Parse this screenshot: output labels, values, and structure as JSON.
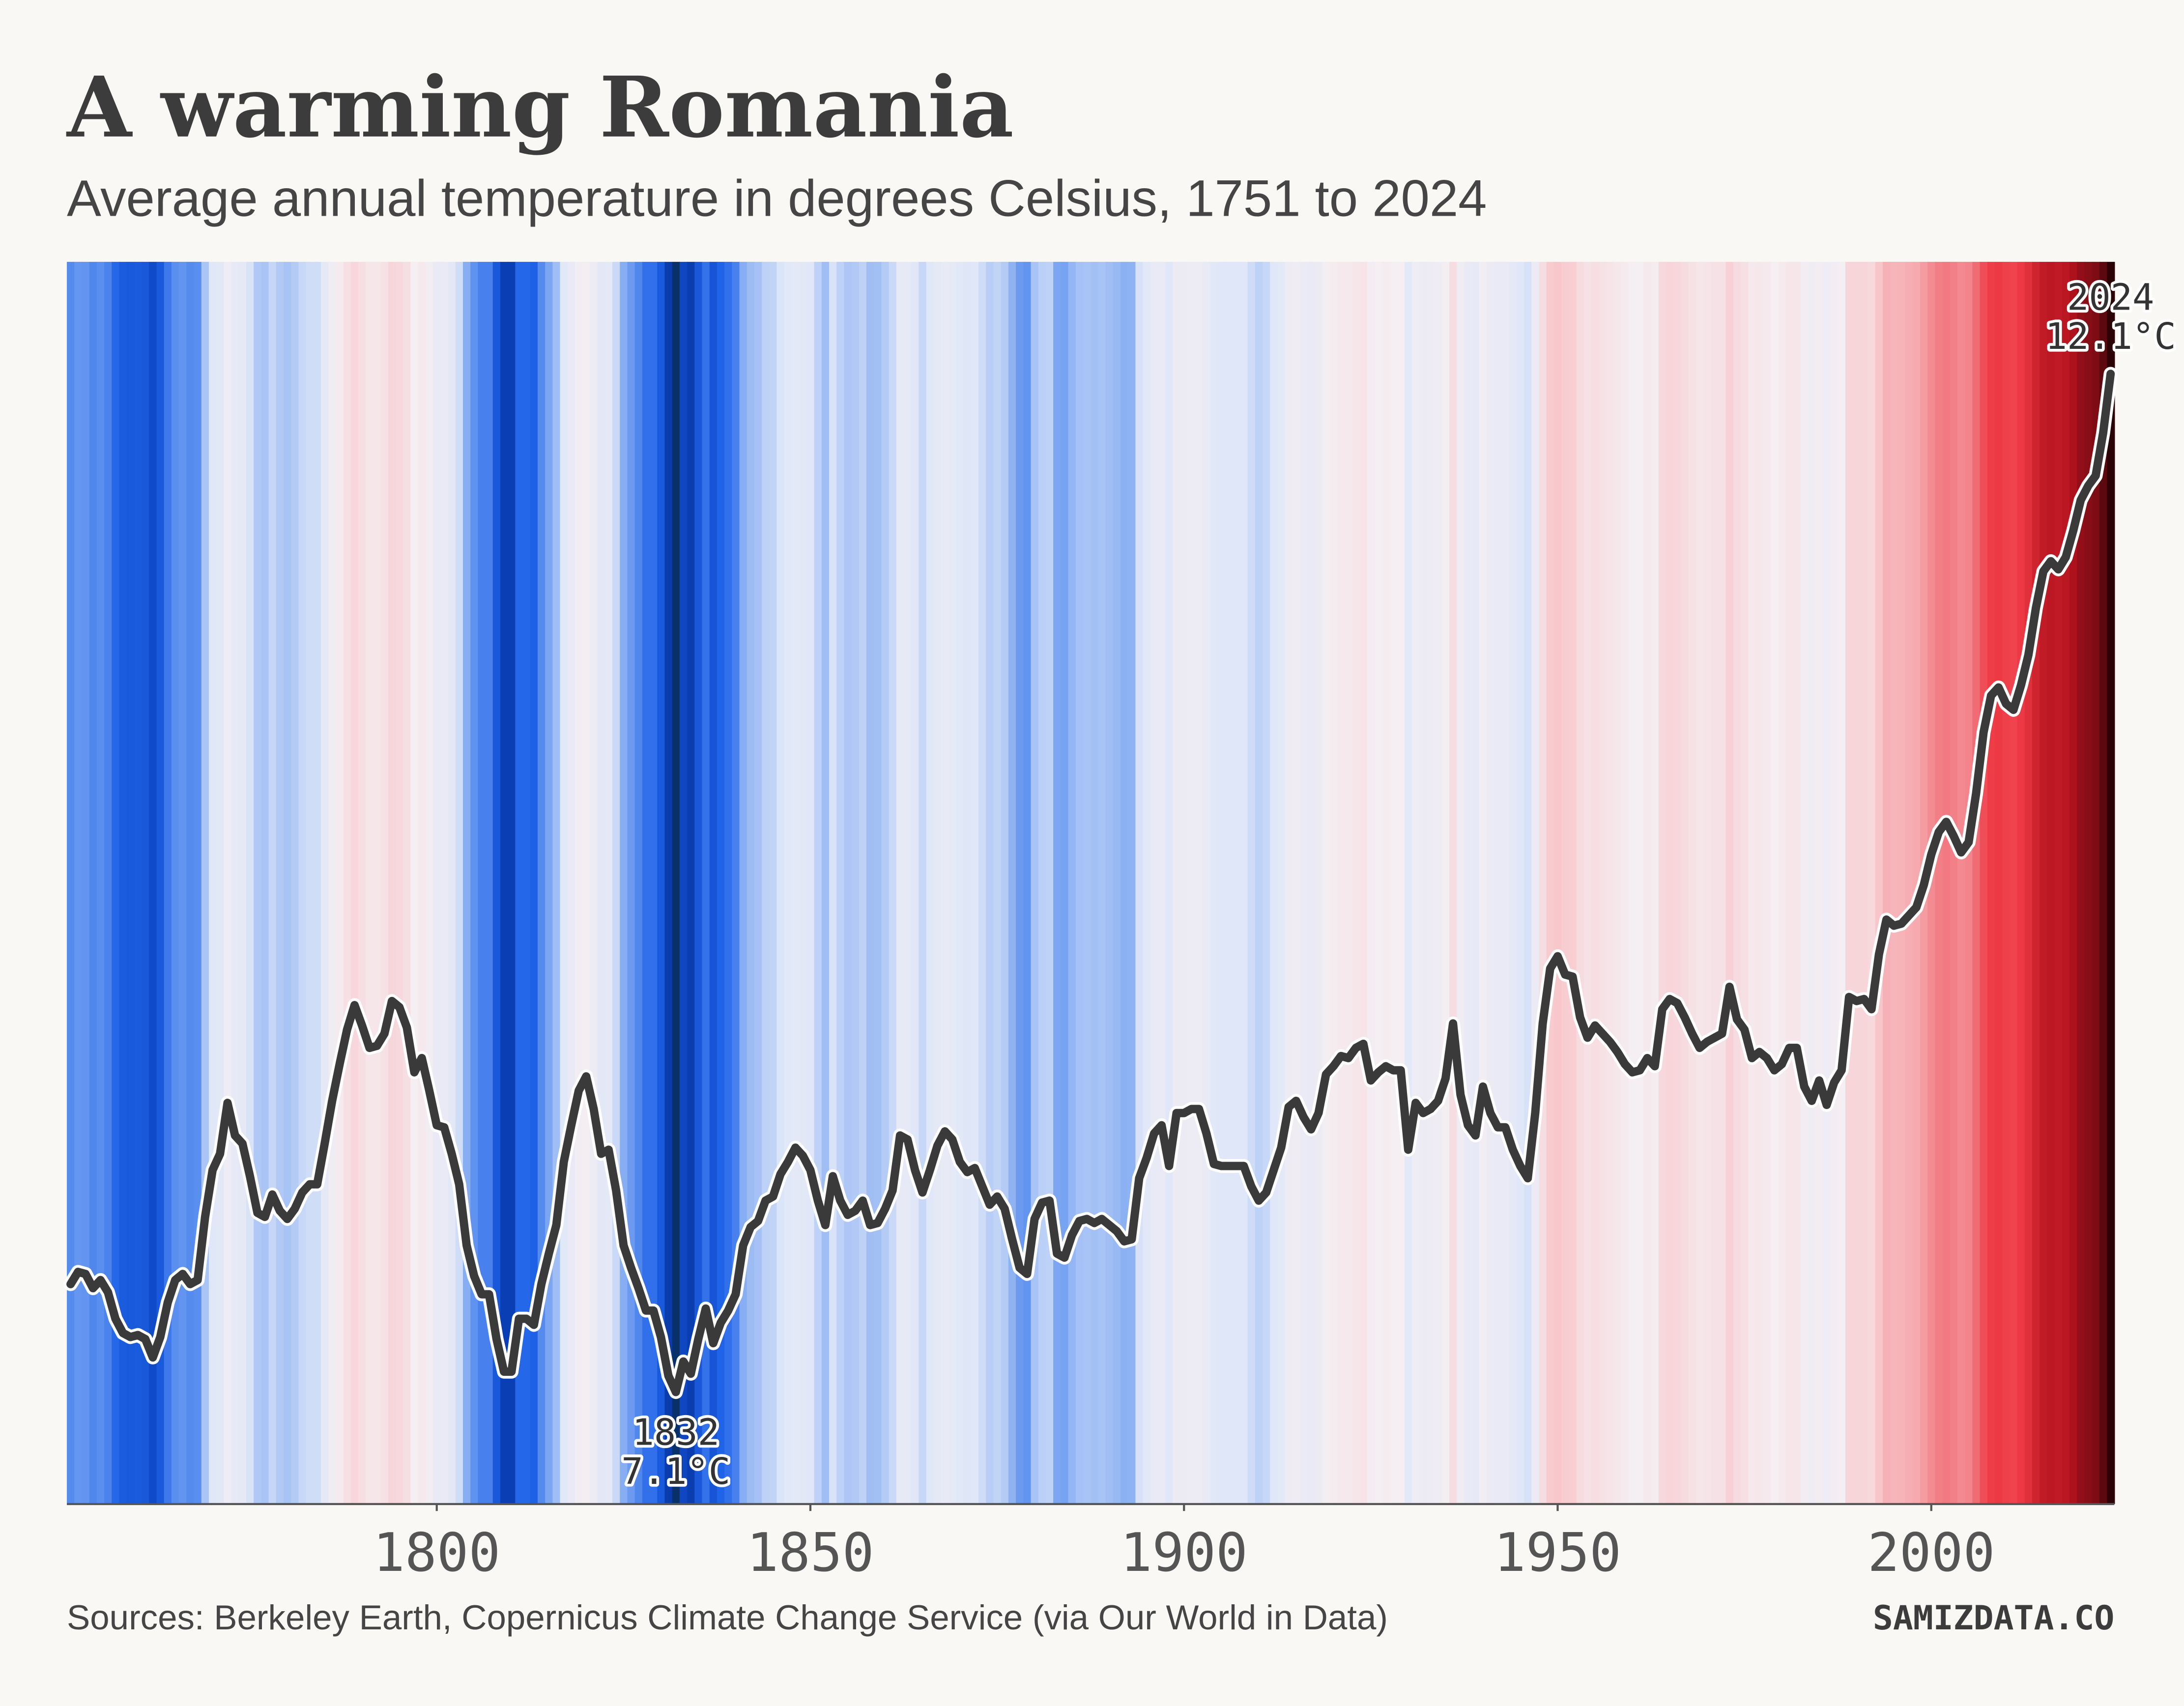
{
  "chart_data": {
    "type": "stripes",
    "title": "A warming Romania",
    "subtitle": "Average annual temperature in degrees Celsius, 1751 to 2024",
    "source": "Sources: Berkeley Earth, Copernicus Climate Change Service (via Our World in Data)",
    "brand": "SAMIZDATA.CO",
    "x": [
      1751,
      1752,
      1753,
      1754,
      1755,
      1756,
      1757,
      1758,
      1759,
      1760,
      1761,
      1762,
      1763,
      1764,
      1765,
      1766,
      1767,
      1768,
      1769,
      1770,
      1771,
      1772,
      1773,
      1774,
      1775,
      1776,
      1777,
      1778,
      1779,
      1780,
      1781,
      1782,
      1783,
      1784,
      1785,
      1786,
      1787,
      1788,
      1789,
      1790,
      1791,
      1792,
      1793,
      1794,
      1795,
      1796,
      1797,
      1798,
      1799,
      1800,
      1801,
      1802,
      1803,
      1804,
      1805,
      1806,
      1807,
      1808,
      1809,
      1810,
      1811,
      1812,
      1813,
      1814,
      1815,
      1816,
      1817,
      1818,
      1819,
      1820,
      1821,
      1822,
      1823,
      1824,
      1825,
      1826,
      1827,
      1828,
      1829,
      1830,
      1831,
      1832,
      1833,
      1834,
      1835,
      1836,
      1837,
      1838,
      1839,
      1840,
      1841,
      1842,
      1843,
      1844,
      1845,
      1846,
      1847,
      1848,
      1849,
      1850,
      1851,
      1852,
      1853,
      1854,
      1855,
      1856,
      1857,
      1858,
      1859,
      1860,
      1861,
      1862,
      1863,
      1864,
      1865,
      1866,
      1867,
      1868,
      1869,
      1870,
      1871,
      1872,
      1873,
      1874,
      1875,
      1876,
      1877,
      1878,
      1879,
      1880,
      1881,
      1882,
      1883,
      1884,
      1885,
      1886,
      1887,
      1888,
      1889,
      1890,
      1891,
      1892,
      1893,
      1894,
      1895,
      1896,
      1897,
      1898,
      1899,
      1900,
      1901,
      1902,
      1903,
      1904,
      1905,
      1906,
      1907,
      1908,
      1909,
      1910,
      1911,
      1912,
      1913,
      1914,
      1915,
      1916,
      1917,
      1918,
      1919,
      1920,
      1921,
      1922,
      1923,
      1924,
      1925,
      1926,
      1927,
      1928,
      1929,
      1930,
      1931,
      1932,
      1933,
      1934,
      1935,
      1936,
      1937,
      1938,
      1939,
      1940,
      1941,
      1942,
      1943,
      1944,
      1945,
      1946,
      1947,
      1948,
      1949,
      1950,
      1951,
      1952,
      1953,
      1954,
      1955,
      1956,
      1957,
      1958,
      1959,
      1960,
      1961,
      1962,
      1963,
      1964,
      1965,
      1966,
      1967,
      1968,
      1969,
      1970,
      1971,
      1972,
      1973,
      1974,
      1975,
      1976,
      1977,
      1978,
      1979,
      1980,
      1981,
      1982,
      1983,
      1984,
      1985,
      1986,
      1987,
      1988,
      1989,
      1990,
      1991,
      1992,
      1993,
      1994,
      1995,
      1996,
      1997,
      1998,
      1999,
      2000,
      2001,
      2002,
      2003,
      2004,
      2005,
      2006,
      2007,
      2008,
      2009,
      2010,
      2011,
      2012,
      2013,
      2014,
      2015,
      2016,
      2017,
      2018,
      2019,
      2020,
      2021,
      2022,
      2023,
      2024
    ],
    "series": [
      {
        "color": "#3a3a3a",
        "values": [
          7.63,
          7.69,
          7.68,
          7.61,
          7.65,
          7.59,
          7.46,
          7.39,
          7.37,
          7.38,
          7.36,
          7.27,
          7.37,
          7.54,
          7.65,
          7.68,
          7.63,
          7.65,
          7.96,
          8.19,
          8.27,
          8.52,
          8.36,
          8.32,
          8.16,
          7.98,
          7.96,
          8.07,
          7.99,
          7.95,
          8.0,
          8.08,
          8.12,
          8.12,
          8.32,
          8.53,
          8.71,
          8.88,
          9.0,
          8.9,
          8.79,
          8.8,
          8.86,
          9.02,
          8.99,
          8.89,
          8.67,
          8.74,
          8.58,
          8.41,
          8.4,
          8.27,
          8.12,
          7.82,
          7.67,
          7.58,
          7.58,
          7.36,
          7.2,
          7.2,
          7.46,
          7.46,
          7.43,
          7.63,
          7.78,
          7.92,
          8.23,
          8.41,
          8.58,
          8.65,
          8.49,
          8.27,
          8.29,
          8.09,
          7.82,
          7.71,
          7.61,
          7.5,
          7.5,
          7.37,
          7.18,
          7.1,
          7.25,
          7.19,
          7.36,
          7.51,
          7.34,
          7.44,
          7.5,
          7.58,
          7.82,
          7.91,
          7.94,
          8.04,
          8.06,
          8.17,
          8.23,
          8.3,
          8.26,
          8.19,
          8.04,
          7.92,
          8.16,
          8.04,
          7.97,
          7.99,
          8.04,
          7.92,
          7.93,
          8.0,
          8.09,
          8.36,
          8.34,
          8.19,
          8.08,
          8.19,
          8.31,
          8.38,
          8.34,
          8.23,
          8.18,
          8.2,
          8.11,
          8.02,
          8.06,
          8.0,
          7.85,
          7.71,
          7.68,
          7.95,
          8.03,
          8.04,
          7.78,
          7.76,
          7.87,
          7.94,
          7.95,
          7.93,
          7.95,
          7.92,
          7.89,
          7.84,
          7.85,
          8.15,
          8.25,
          8.37,
          8.41,
          8.21,
          8.47,
          8.47,
          8.49,
          8.49,
          8.37,
          8.22,
          8.21,
          8.21,
          8.21,
          8.21,
          8.11,
          8.04,
          8.08,
          8.19,
          8.3,
          8.5,
          8.53,
          8.45,
          8.39,
          8.47,
          8.66,
          8.7,
          8.75,
          8.74,
          8.79,
          8.81,
          8.63,
          8.67,
          8.7,
          8.68,
          8.68,
          8.29,
          8.52,
          8.47,
          8.49,
          8.53,
          8.64,
          8.91,
          8.56,
          8.41,
          8.36,
          8.6,
          8.47,
          8.4,
          8.4,
          8.29,
          8.21,
          8.15,
          8.47,
          8.91,
          9.18,
          9.24,
          9.15,
          9.14,
          8.94,
          8.84,
          8.9,
          8.86,
          8.82,
          8.77,
          8.71,
          8.67,
          8.68,
          8.74,
          8.7,
          8.98,
          9.03,
          9.01,
          8.94,
          8.86,
          8.79,
          8.82,
          8.84,
          8.86,
          9.09,
          8.93,
          8.88,
          8.74,
          8.77,
          8.74,
          8.68,
          8.71,
          8.79,
          8.79,
          8.6,
          8.53,
          8.63,
          8.51,
          8.62,
          8.68,
          9.04,
          9.02,
          9.03,
          8.98,
          9.25,
          9.42,
          9.39,
          9.4,
          9.44,
          9.48,
          9.59,
          9.74,
          9.85,
          9.9,
          9.83,
          9.75,
          9.8,
          10.04,
          10.34,
          10.52,
          10.56,
          10.48,
          10.45,
          10.57,
          10.72,
          10.95,
          11.13,
          11.18,
          11.14,
          11.2,
          11.33,
          11.48,
          11.55,
          11.6,
          11.81,
          12.1
        ]
      }
    ],
    "stripe_colors": [
      "#08306b",
      "#0a3fb8",
      "#1f63e8",
      "#7aa5f2",
      "#dfe7f8",
      "#f5eef2",
      "#f8c8cc",
      "#f27d85",
      "#ee3a45",
      "#b3121d",
      "#2b0306"
    ],
    "xlim": [
      1751,
      2024
    ],
    "xticks": [
      1800,
      1850,
      1900,
      1950,
      2000
    ],
    "ylim": [
      6.55,
      12.65
    ],
    "annotations": [
      {
        "x": 1832,
        "label": "7.1°C"
      },
      {
        "x": 2024,
        "label": "12.1°C"
      }
    ]
  }
}
